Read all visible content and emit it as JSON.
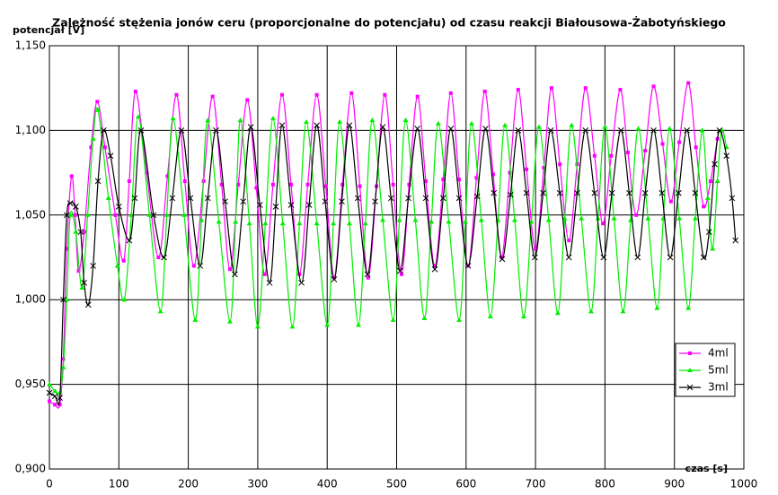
{
  "chart_data": {
    "type": "line",
    "title": "Zależność stężenia jonów ceru (proporcjonalne do potencjału) od czasu reakcji Białousowa-Żabotyńskiego",
    "y_label": "potencjał [V]",
    "x_label": "czas [s]",
    "xlim": [
      0,
      1000
    ],
    "xticks": [
      0,
      100,
      200,
      300,
      400,
      500,
      600,
      700,
      800,
      900,
      1000
    ],
    "ylim": [
      0.9,
      1.15
    ],
    "yticks": [
      {
        "value": 0.9,
        "label": "0,900"
      },
      {
        "value": 0.95,
        "label": "0,950"
      },
      {
        "value": 1.0,
        "label": "1,000"
      },
      {
        "value": 1.05,
        "label": "1,050"
      },
      {
        "value": 1.1,
        "label": "1,100"
      },
      {
        "value": 1.15,
        "label": "1,150"
      }
    ],
    "grid": true,
    "legend": "right",
    "series": [
      {
        "name": "4ml",
        "color": "#ff00ff",
        "marker": "square",
        "x": [
          0,
          8,
          15,
          20,
          25,
          32,
          37,
          42,
          50,
          60,
          69,
          80,
          95,
          107,
          115,
          124,
          140,
          157,
          170,
          183,
          195,
          208,
          222,
          235,
          248,
          260,
          272,
          285,
          298,
          310,
          322,
          335,
          348,
          360,
          372,
          385,
          398,
          410,
          422,
          435,
          447,
          459,
          471,
          483,
          495,
          507,
          518,
          530,
          542,
          555,
          567,
          578,
          590,
          603,
          615,
          627,
          639,
          651,
          663,
          675,
          687,
          700,
          712,
          723,
          735,
          748,
          760,
          772,
          785,
          797,
          809,
          822,
          833,
          845,
          858,
          870,
          883,
          895,
          907,
          920,
          931,
          942,
          952,
          962
        ],
        "values": [
          0.94,
          0.938,
          0.938,
          0.965,
          1.03,
          1.073,
          1.05,
          1.017,
          1.04,
          1.09,
          1.117,
          1.09,
          1.05,
          1.023,
          1.07,
          1.123,
          1.075,
          1.025,
          1.073,
          1.121,
          1.07,
          1.02,
          1.07,
          1.12,
          1.068,
          1.018,
          1.068,
          1.118,
          1.066,
          1.015,
          1.068,
          1.121,
          1.068,
          1.015,
          1.068,
          1.121,
          1.067,
          1.013,
          1.068,
          1.122,
          1.067,
          1.013,
          1.067,
          1.121,
          1.068,
          1.015,
          1.068,
          1.12,
          1.07,
          1.02,
          1.071,
          1.122,
          1.071,
          1.02,
          1.072,
          1.123,
          1.074,
          1.025,
          1.075,
          1.124,
          1.077,
          1.03,
          1.078,
          1.125,
          1.08,
          1.035,
          1.08,
          1.125,
          1.085,
          1.045,
          1.085,
          1.124,
          1.087,
          1.05,
          1.088,
          1.126,
          1.092,
          1.058,
          1.093,
          1.128,
          1.09,
          1.055,
          1.07,
          1.095
        ]
      },
      {
        "name": "5ml",
        "color": "#00ee00",
        "marker": "triangle",
        "x": [
          0,
          8,
          15,
          20,
          25,
          30,
          38,
          47,
          55,
          63,
          70,
          85,
          98,
          108,
          118,
          128,
          144,
          160,
          169,
          178,
          194,
          210,
          219,
          228,
          244,
          260,
          268,
          275,
          288,
          300,
          311,
          322,
          336,
          350,
          360,
          370,
          385,
          400,
          409,
          418,
          432,
          445,
          455,
          465,
          480,
          495,
          504,
          513,
          527,
          540,
          550,
          560,
          575,
          590,
          599,
          608,
          622,
          635,
          646,
          656,
          670,
          683,
          694,
          705,
          719,
          732,
          742,
          752,
          766,
          780,
          790,
          800,
          813,
          826,
          837,
          848,
          862,
          875,
          884,
          893,
          907,
          920,
          930,
          940,
          948,
          955,
          962,
          968,
          975
        ],
        "values": [
          0.95,
          0.946,
          0.945,
          0.96,
          1.0,
          1.05,
          1.04,
          1.007,
          1.05,
          1.095,
          1.112,
          1.06,
          1.02,
          1.0,
          1.05,
          1.108,
          1.05,
          0.993,
          1.05,
          1.107,
          1.05,
          0.988,
          1.047,
          1.106,
          1.046,
          0.987,
          1.046,
          1.106,
          1.045,
          0.984,
          1.045,
          1.107,
          1.045,
          0.984,
          1.045,
          1.105,
          1.045,
          0.985,
          1.045,
          1.105,
          1.045,
          0.985,
          1.045,
          1.106,
          1.047,
          0.988,
          1.047,
          1.106,
          1.047,
          0.989,
          1.046,
          1.104,
          1.046,
          0.988,
          1.046,
          1.104,
          1.047,
          0.99,
          1.047,
          1.103,
          1.047,
          0.99,
          1.046,
          1.102,
          1.047,
          0.992,
          1.048,
          1.103,
          1.048,
          0.993,
          1.048,
          1.102,
          1.048,
          0.993,
          1.047,
          1.101,
          1.048,
          0.995,
          1.048,
          1.101,
          1.048,
          0.995,
          1.048,
          1.1,
          1.06,
          1.03,
          1.07,
          1.1,
          1.09
        ]
      },
      {
        "name": "3ml",
        "color": "#000000",
        "marker": "x",
        "x": [
          0,
          8,
          15,
          20,
          25,
          30,
          38,
          45,
          50,
          56,
          63,
          70,
          78,
          88,
          100,
          115,
          123,
          132,
          150,
          165,
          177,
          190,
          203,
          217,
          228,
          240,
          253,
          267,
          279,
          290,
          303,
          317,
          326,
          335,
          348,
          363,
          374,
          385,
          397,
          410,
          421,
          432,
          444,
          458,
          469,
          480,
          492,
          505,
          517,
          530,
          542,
          555,
          567,
          578,
          590,
          603,
          616,
          628,
          640,
          652,
          664,
          675,
          687,
          699,
          711,
          722,
          735,
          748,
          760,
          772,
          785,
          798,
          810,
          823,
          835,
          847,
          858,
          870,
          882,
          894,
          906,
          918,
          930,
          942,
          950,
          958,
          965,
          975,
          983,
          988
        ],
        "values": [
          0.945,
          0.943,
          0.942,
          1.0,
          1.05,
          1.057,
          1.055,
          1.04,
          1.01,
          0.997,
          1.02,
          1.07,
          1.1,
          1.085,
          1.055,
          1.035,
          1.06,
          1.1,
          1.05,
          1.025,
          1.06,
          1.1,
          1.06,
          1.02,
          1.06,
          1.1,
          1.058,
          1.015,
          1.058,
          1.102,
          1.056,
          1.01,
          1.055,
          1.103,
          1.056,
          1.01,
          1.056,
          1.103,
          1.058,
          1.012,
          1.058,
          1.103,
          1.06,
          1.015,
          1.058,
          1.102,
          1.06,
          1.017,
          1.06,
          1.101,
          1.06,
          1.018,
          1.06,
          1.101,
          1.06,
          1.02,
          1.061,
          1.101,
          1.063,
          1.024,
          1.062,
          1.1,
          1.063,
          1.025,
          1.063,
          1.1,
          1.063,
          1.025,
          1.063,
          1.1,
          1.063,
          1.025,
          1.063,
          1.1,
          1.063,
          1.025,
          1.063,
          1.1,
          1.063,
          1.025,
          1.063,
          1.1,
          1.063,
          1.025,
          1.04,
          1.08,
          1.1,
          1.085,
          1.06,
          1.035
        ]
      }
    ]
  }
}
